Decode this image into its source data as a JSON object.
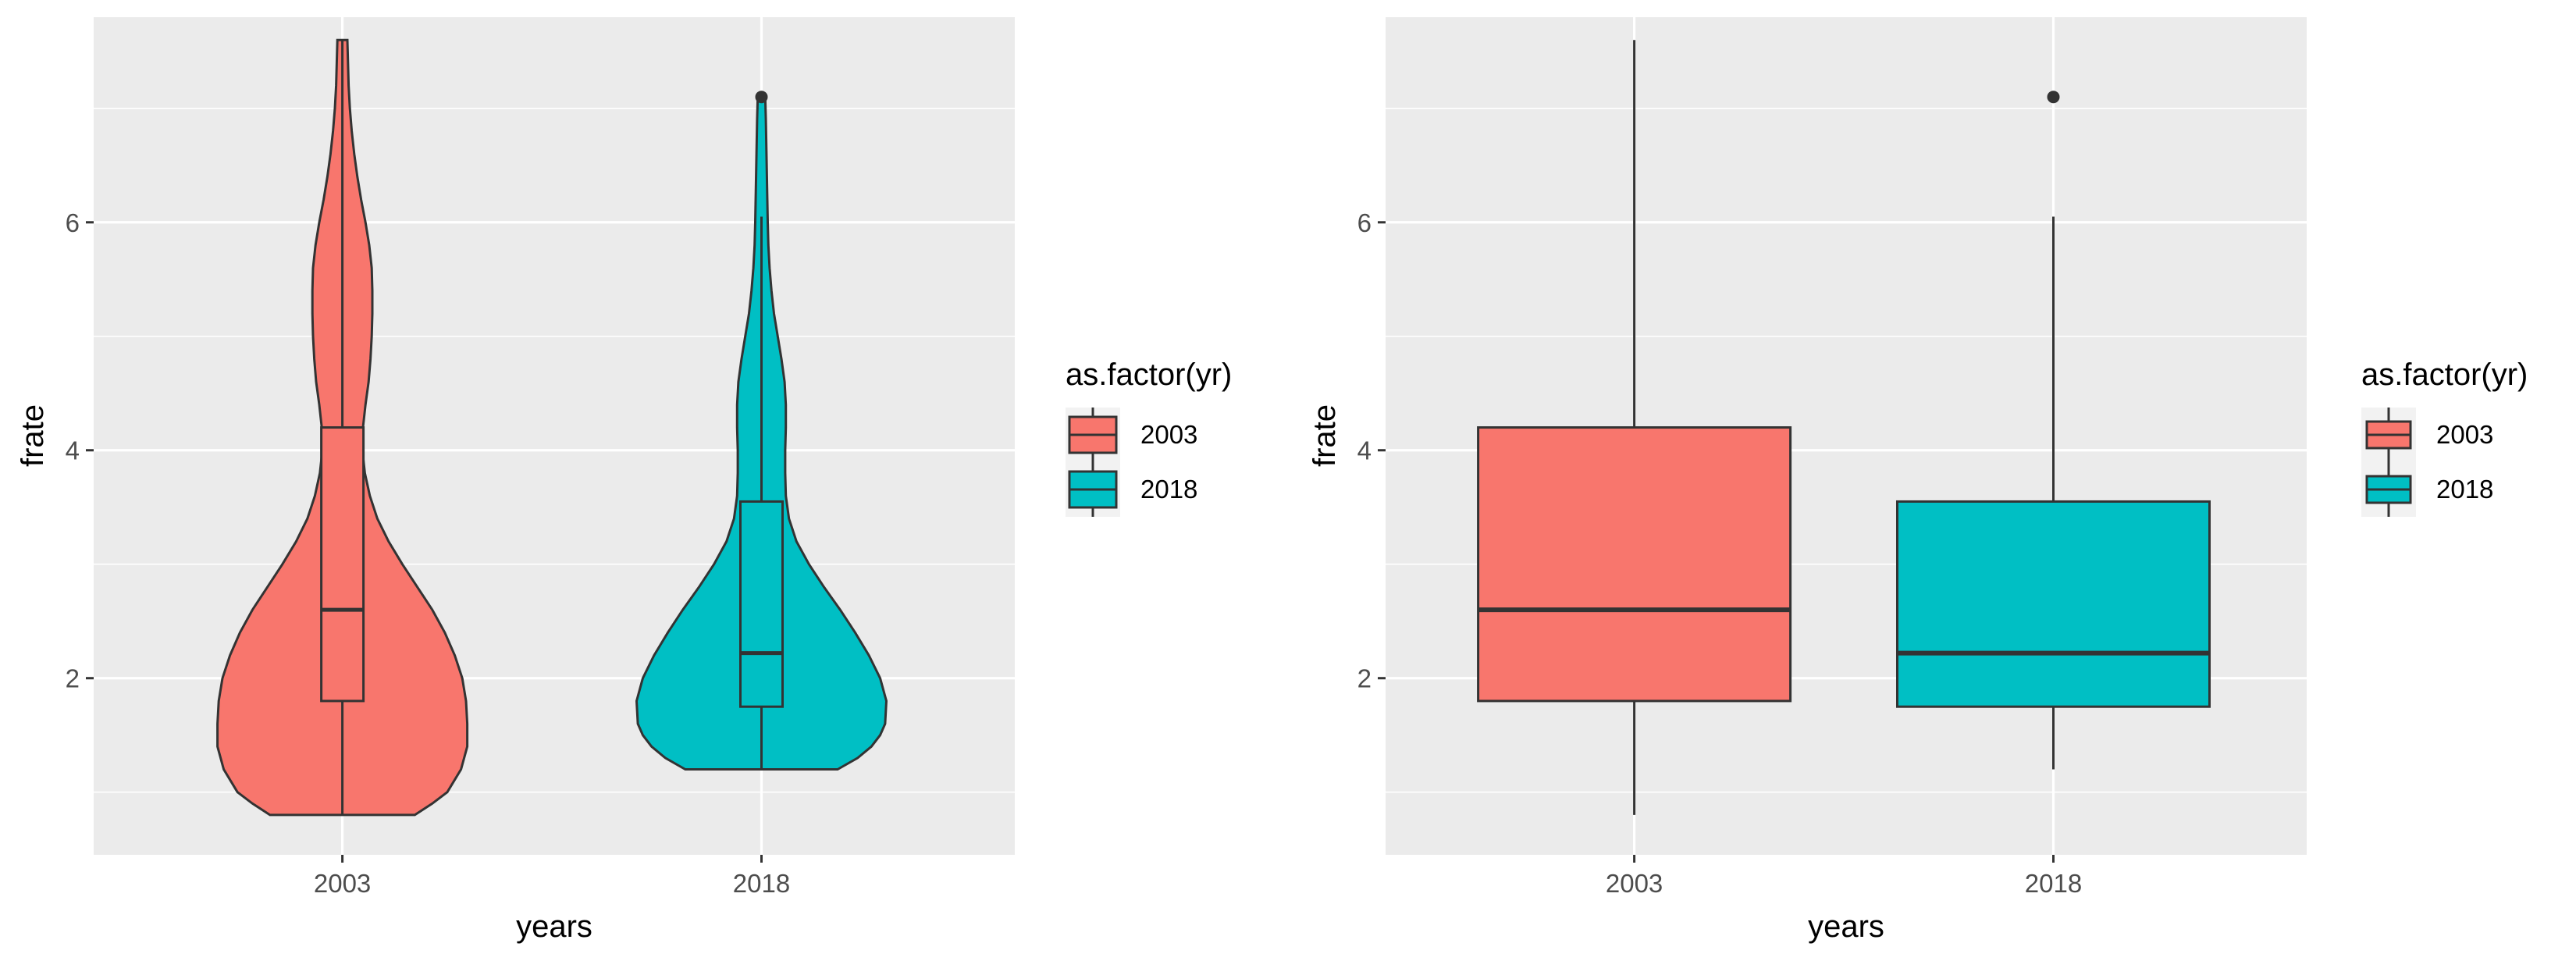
{
  "chart_data": [
    {
      "type": "violin",
      "xlabel": "years",
      "ylabel": "frate",
      "categories": [
        "2003",
        "2018"
      ],
      "yticks": [
        2,
        4,
        6
      ],
      "ylim": [
        0.45,
        7.8
      ],
      "grid": true,
      "legend": {
        "title": "as.factor(yr)",
        "position": "right",
        "entries": [
          {
            "label": "2003",
            "color": "#f8766d"
          },
          {
            "label": "2018",
            "color": "#00bfc4"
          }
        ]
      },
      "series": [
        {
          "name": "2003",
          "color": "#f8766d",
          "min": 0.8,
          "q1": 1.8,
          "median": 2.6,
          "q3": 4.2,
          "max": 7.6,
          "outliers": [],
          "density": [
            [
              0.8,
              0.58
            ],
            [
              0.9,
              0.72
            ],
            [
              1.0,
              0.84
            ],
            [
              1.2,
              0.95
            ],
            [
              1.4,
              1.0
            ],
            [
              1.6,
              1.0
            ],
            [
              1.8,
              0.99
            ],
            [
              2.0,
              0.96
            ],
            [
              2.2,
              0.9
            ],
            [
              2.4,
              0.82
            ],
            [
              2.6,
              0.72
            ],
            [
              2.8,
              0.6
            ],
            [
              3.0,
              0.48
            ],
            [
              3.2,
              0.37
            ],
            [
              3.4,
              0.28
            ],
            [
              3.6,
              0.22
            ],
            [
              3.8,
              0.18
            ],
            [
              4.0,
              0.16
            ],
            [
              4.2,
              0.165
            ],
            [
              4.4,
              0.185
            ],
            [
              4.6,
              0.21
            ],
            [
              4.8,
              0.225
            ],
            [
              5.0,
              0.235
            ],
            [
              5.2,
              0.24
            ],
            [
              5.4,
              0.24
            ],
            [
              5.6,
              0.235
            ],
            [
              5.8,
              0.215
            ],
            [
              6.0,
              0.185
            ],
            [
              6.2,
              0.15
            ],
            [
              6.4,
              0.12
            ],
            [
              6.6,
              0.095
            ],
            [
              6.8,
              0.075
            ],
            [
              7.0,
              0.06
            ],
            [
              7.2,
              0.05
            ],
            [
              7.4,
              0.045
            ],
            [
              7.6,
              0.04
            ]
          ]
        },
        {
          "name": "2018",
          "color": "#00bfc4",
          "min": 1.2,
          "q1": 1.75,
          "median": 2.22,
          "q3": 3.55,
          "max": 6.05,
          "outliers": [
            7.1
          ],
          "density": [
            [
              1.2,
              0.61
            ],
            [
              1.3,
              0.77
            ],
            [
              1.4,
              0.88
            ],
            [
              1.5,
              0.95
            ],
            [
              1.6,
              0.99
            ],
            [
              1.8,
              1.0
            ],
            [
              2.0,
              0.95
            ],
            [
              2.2,
              0.86
            ],
            [
              2.4,
              0.75
            ],
            [
              2.6,
              0.63
            ],
            [
              2.8,
              0.5
            ],
            [
              3.0,
              0.38
            ],
            [
              3.2,
              0.28
            ],
            [
              3.4,
              0.22
            ],
            [
              3.6,
              0.195
            ],
            [
              3.8,
              0.19
            ],
            [
              4.0,
              0.19
            ],
            [
              4.2,
              0.195
            ],
            [
              4.4,
              0.195
            ],
            [
              4.6,
              0.185
            ],
            [
              4.8,
              0.16
            ],
            [
              5.0,
              0.13
            ],
            [
              5.2,
              0.1
            ],
            [
              5.4,
              0.08
            ],
            [
              5.6,
              0.065
            ],
            [
              5.8,
              0.055
            ],
            [
              6.0,
              0.05
            ],
            [
              6.3,
              0.045
            ],
            [
              6.6,
              0.04
            ],
            [
              6.9,
              0.035
            ],
            [
              7.1,
              0.03
            ]
          ]
        }
      ]
    },
    {
      "type": "box",
      "xlabel": "years",
      "ylabel": "frate",
      "categories": [
        "2003",
        "2018"
      ],
      "yticks": [
        2,
        4,
        6
      ],
      "ylim": [
        0.45,
        7.8
      ],
      "grid": true,
      "legend": {
        "title": "as.factor(yr)",
        "position": "right",
        "entries": [
          {
            "label": "2003",
            "color": "#f8766d"
          },
          {
            "label": "2018",
            "color": "#00bfc4"
          }
        ]
      },
      "series": [
        {
          "name": "2003",
          "color": "#f8766d",
          "min": 0.8,
          "q1": 1.8,
          "median": 2.6,
          "q3": 4.2,
          "max": 7.6,
          "outliers": []
        },
        {
          "name": "2018",
          "color": "#00bfc4",
          "min": 1.2,
          "q1": 1.75,
          "median": 2.22,
          "q3": 3.55,
          "max": 6.05,
          "outliers": [
            7.1
          ]
        }
      ]
    }
  ]
}
